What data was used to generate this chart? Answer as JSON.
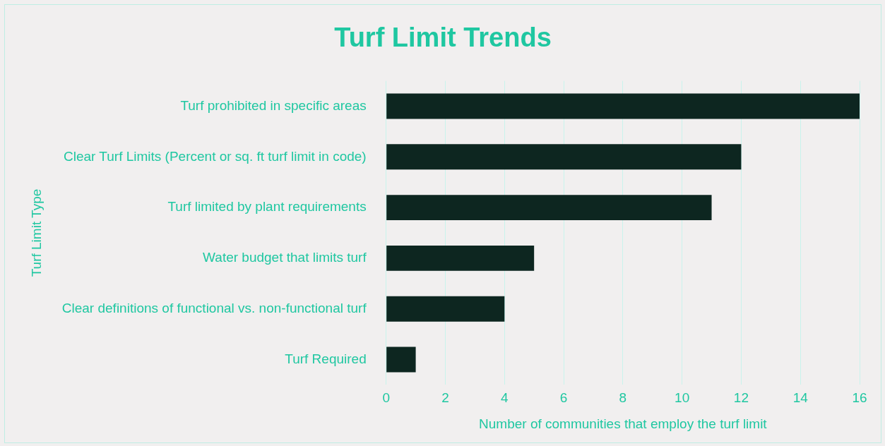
{
  "chart_data": {
    "type": "bar",
    "orientation": "horizontal",
    "title": "Turf Limit Trends",
    "xlabel": "Number of communities that employ the turf limit",
    "ylabel": "Turf Limit Type",
    "categories": [
      "Turf prohibited in specific areas",
      "Clear Turf Limits (Percent or sq. ft turf limit in code)",
      "Turf limited by plant requirements",
      "Water budget that limits turf",
      "Clear definitions of functional vs. non-functional turf",
      "Turf Required"
    ],
    "values": [
      16,
      12,
      11,
      5,
      4,
      1
    ],
    "color": "#0d2620",
    "xlim": [
      0,
      16
    ],
    "xticks": [
      0,
      2,
      4,
      6,
      8,
      10,
      12,
      14,
      16
    ],
    "grid": "x",
    "legend": false
  }
}
